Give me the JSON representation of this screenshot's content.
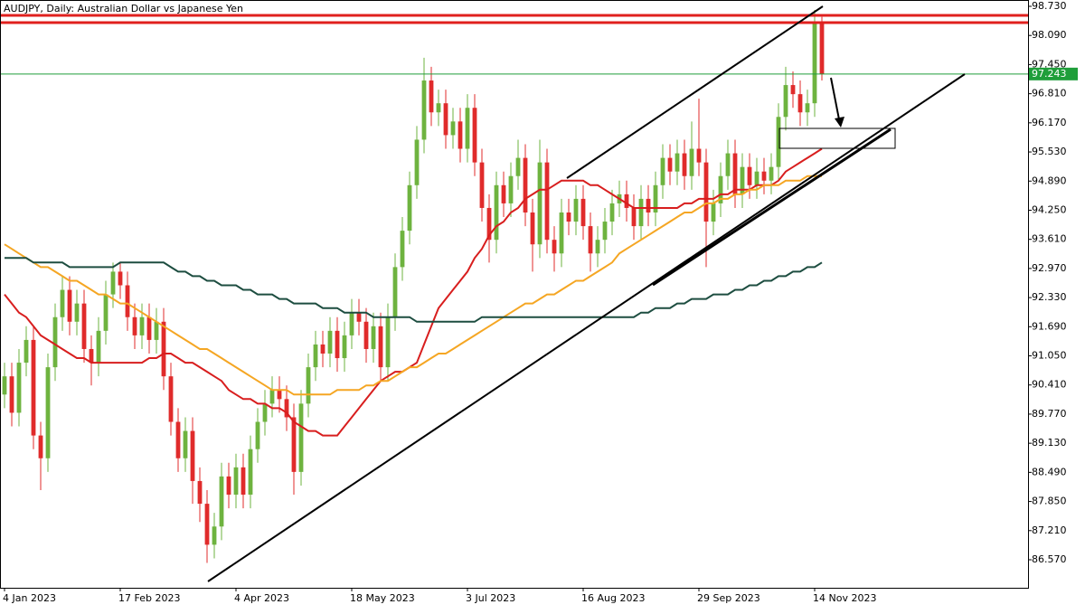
{
  "chart_data": {
    "type": "candlestick",
    "title": "AUDJPY, Daily:  Australian Dollar vs Japanese Yen",
    "categories": [
      "4 Jan 2023",
      null,
      null,
      null,
      null,
      null,
      null,
      null,
      null,
      null,
      null,
      null,
      null,
      null,
      null,
      null,
      "17 Feb 2023",
      null,
      null,
      null,
      null,
      null,
      null,
      null,
      null,
      null,
      null,
      null,
      null,
      null,
      null,
      null,
      "4 Apr 2023",
      null,
      null,
      null,
      null,
      null,
      null,
      null,
      null,
      null,
      null,
      null,
      null,
      null,
      null,
      null,
      "18 May 2023",
      null,
      null,
      null,
      null,
      null,
      null,
      null,
      null,
      null,
      null,
      null,
      null,
      null,
      null,
      null,
      "3 Jul 2023",
      null,
      null,
      null,
      null,
      null,
      null,
      null,
      null,
      null,
      null,
      null,
      null,
      null,
      null,
      null,
      "16 Aug 2023",
      null,
      null,
      null,
      null,
      null,
      null,
      null,
      null,
      null,
      null,
      null,
      null,
      null,
      null,
      null,
      "29 Sep 2023",
      null,
      null,
      null,
      null,
      null,
      null,
      null,
      null,
      null,
      null,
      null,
      null,
      null,
      null,
      null,
      "14 Nov 2023",
      null
    ],
    "open": [
      90.2,
      90.6,
      89.8,
      90.9,
      91.4,
      89.3,
      88.8,
      90.8,
      91.9,
      92.5,
      91.8,
      92.2,
      91.2,
      90.9,
      91.6,
      92.4,
      92.9,
      92.6,
      91.9,
      91.5,
      91.9,
      91.4,
      91.8,
      90.6,
      89.6,
      88.8,
      89.4,
      88.3,
      87.8,
      86.9,
      87.3,
      88.4,
      88.0,
      88.6,
      88.0,
      89.0,
      89.6,
      90.0,
      90.3,
      90.1,
      89.7,
      88.5,
      90.0,
      90.8,
      91.3,
      91.1,
      91.6,
      91.0,
      91.5,
      92.0,
      91.8,
      91.2,
      91.7,
      90.8,
      91.9,
      93.0,
      93.8,
      94.8,
      95.8,
      97.1,
      96.4,
      96.6,
      95.9,
      96.2,
      95.6,
      96.5,
      95.3,
      94.3,
      93.6,
      94.8,
      94.4,
      95.0,
      95.4,
      94.2,
      93.5,
      95.3,
      93.6,
      93.3,
      94.2,
      94.0,
      94.5,
      93.9,
      93.3,
      93.6,
      94.0,
      94.4,
      94.6,
      94.3,
      93.9,
      94.5,
      94.2,
      94.8,
      95.4,
      95.1,
      95.5,
      95.0,
      95.6,
      95.3,
      94.0,
      94.4,
      95.0,
      95.5,
      94.6,
      95.2,
      94.8,
      95.1,
      94.9,
      95.2,
      96.3,
      97.0,
      96.8,
      96.4,
      96.6,
      98.4
    ],
    "high": [
      90.9,
      90.9,
      91.2,
      91.7,
      91.7,
      89.6,
      91.1,
      92.2,
      92.8,
      92.8,
      92.5,
      92.5,
      91.5,
      91.9,
      92.7,
      93.1,
      93.1,
      92.9,
      92.2,
      92.2,
      92.2,
      92.1,
      92.1,
      90.9,
      89.9,
      89.7,
      89.7,
      88.6,
      88.1,
      87.6,
      88.7,
      88.7,
      88.9,
      88.9,
      89.3,
      89.9,
      90.3,
      90.6,
      90.6,
      90.4,
      90.0,
      90.3,
      91.1,
      91.6,
      91.6,
      91.9,
      91.9,
      91.8,
      92.3,
      92.3,
      92.1,
      92.0,
      92.0,
      92.2,
      93.3,
      94.1,
      95.1,
      96.1,
      97.6,
      97.4,
      96.9,
      96.9,
      96.5,
      96.5,
      96.8,
      96.8,
      95.6,
      94.6,
      95.1,
      95.1,
      95.3,
      95.8,
      95.7,
      94.5,
      95.8,
      95.6,
      93.9,
      94.5,
      94.5,
      94.8,
      94.8,
      94.2,
      93.9,
      94.3,
      94.7,
      94.9,
      94.9,
      94.6,
      94.8,
      94.8,
      95.1,
      95.7,
      95.7,
      95.8,
      95.8,
      96.2,
      96.7,
      95.6,
      94.7,
      95.3,
      95.8,
      95.8,
      95.5,
      95.5,
      95.4,
      95.4,
      95.5,
      96.6,
      97.4,
      97.3,
      97.1,
      96.9,
      98.65,
      98.5
    ],
    "low": [
      89.9,
      89.5,
      89.5,
      90.6,
      89.0,
      88.1,
      88.5,
      90.5,
      91.6,
      91.5,
      91.5,
      90.9,
      90.4,
      90.6,
      91.3,
      92.1,
      92.3,
      91.6,
      91.2,
      91.2,
      91.1,
      91.1,
      90.3,
      89.3,
      88.5,
      88.5,
      87.8,
      87.4,
      86.5,
      86.6,
      87.0,
      87.7,
      87.7,
      87.7,
      87.7,
      88.7,
      89.3,
      89.7,
      89.8,
      89.4,
      88.0,
      88.2,
      89.7,
      90.5,
      90.8,
      90.8,
      90.7,
      90.7,
      91.2,
      91.5,
      90.9,
      90.9,
      90.5,
      90.5,
      91.6,
      92.7,
      93.5,
      94.5,
      95.5,
      96.1,
      96.1,
      95.6,
      95.6,
      95.3,
      95.3,
      95.0,
      94.0,
      93.1,
      93.3,
      94.1,
      94.1,
      94.7,
      93.9,
      92.9,
      93.2,
      93.3,
      92.9,
      93.0,
      93.7,
      93.7,
      93.6,
      92.9,
      93.0,
      93.3,
      93.7,
      94.1,
      94.0,
      93.6,
      93.6,
      93.9,
      93.9,
      94.5,
      94.8,
      94.8,
      94.7,
      94.7,
      95.0,
      93.0,
      93.7,
      94.1,
      94.7,
      94.3,
      94.3,
      94.5,
      94.5,
      94.6,
      94.6,
      94.9,
      96.0,
      96.5,
      96.1,
      96.1,
      96.3,
      97.1
    ],
    "close": [
      90.6,
      89.8,
      90.9,
      91.4,
      89.3,
      88.8,
      90.8,
      91.9,
      92.5,
      91.8,
      92.2,
      91.2,
      90.9,
      91.6,
      92.4,
      92.9,
      92.6,
      91.9,
      91.5,
      91.9,
      91.4,
      91.8,
      90.6,
      89.6,
      88.8,
      89.4,
      88.3,
      87.8,
      86.9,
      87.3,
      88.4,
      88.0,
      88.6,
      88.0,
      89.0,
      89.6,
      90.0,
      90.3,
      90.1,
      89.7,
      88.5,
      90.0,
      90.8,
      91.3,
      91.1,
      91.6,
      91.0,
      91.5,
      92.0,
      91.8,
      91.2,
      91.7,
      90.8,
      91.9,
      93.0,
      93.8,
      94.8,
      95.8,
      97.1,
      96.4,
      96.6,
      95.9,
      96.2,
      95.6,
      96.5,
      95.3,
      94.3,
      93.6,
      94.8,
      94.4,
      95.0,
      95.4,
      94.2,
      93.5,
      95.3,
      93.6,
      93.3,
      94.2,
      94.0,
      94.5,
      93.9,
      93.3,
      93.6,
      94.0,
      94.4,
      94.6,
      94.3,
      93.9,
      94.5,
      94.2,
      94.8,
      95.4,
      95.1,
      95.5,
      95.0,
      95.6,
      95.3,
      94.0,
      94.4,
      95.0,
      95.5,
      94.6,
      95.2,
      94.8,
      95.1,
      94.9,
      95.2,
      96.3,
      97.0,
      96.8,
      96.4,
      96.6,
      98.4,
      97.243
    ],
    "up_color": "#6eb33f",
    "down_color": "#e02b2b",
    "last_price_color": "#1f9e3a",
    "series": [
      {
        "color": "#d81e1e",
        "values": [
          92.4,
          92.2,
          92.0,
          91.9,
          91.7,
          91.5,
          91.4,
          91.3,
          91.2,
          91.1,
          91.0,
          91.0,
          90.9,
          90.9,
          90.9,
          90.9,
          90.9,
          90.9,
          90.9,
          90.9,
          91.0,
          91.0,
          91.1,
          91.1,
          91.0,
          90.9,
          90.9,
          90.8,
          90.7,
          90.6,
          90.5,
          90.3,
          90.2,
          90.1,
          90.1,
          90.0,
          90.0,
          89.9,
          89.9,
          89.8,
          89.6,
          89.5,
          89.4,
          89.4,
          89.3,
          89.3,
          89.3,
          89.5,
          89.7,
          89.9,
          90.1,
          90.3,
          90.5,
          90.6,
          90.7,
          90.7,
          90.8,
          90.9,
          91.3,
          91.7,
          92.1,
          92.3,
          92.5,
          92.7,
          92.9,
          93.2,
          93.4,
          93.7,
          93.9,
          94.0,
          94.2,
          94.3,
          94.5,
          94.6,
          94.7,
          94.7,
          94.8,
          94.9,
          94.9,
          94.9,
          94.9,
          94.8,
          94.8,
          94.7,
          94.6,
          94.5,
          94.4,
          94.3,
          94.3,
          94.3,
          94.3,
          94.3,
          94.3,
          94.3,
          94.4,
          94.4,
          94.5,
          94.5,
          94.5,
          94.6,
          94.6,
          94.7,
          94.7,
          94.7,
          94.8,
          94.8,
          94.8,
          94.9,
          95.1,
          95.2,
          95.3,
          95.4,
          95.5,
          95.6
        ]
      },
      {
        "color": "#f5a623",
        "values": [
          93.5,
          93.4,
          93.3,
          93.2,
          93.1,
          93.0,
          93.0,
          92.9,
          92.8,
          92.7,
          92.7,
          92.6,
          92.5,
          92.4,
          92.4,
          92.3,
          92.2,
          92.2,
          92.1,
          92.0,
          91.9,
          91.8,
          91.7,
          91.6,
          91.5,
          91.4,
          91.3,
          91.2,
          91.2,
          91.1,
          91.0,
          90.9,
          90.8,
          90.7,
          90.6,
          90.5,
          90.4,
          90.3,
          90.3,
          90.3,
          90.2,
          90.2,
          90.2,
          90.2,
          90.2,
          90.2,
          90.3,
          90.3,
          90.3,
          90.3,
          90.4,
          90.4,
          90.5,
          90.5,
          90.6,
          90.7,
          90.8,
          90.8,
          90.9,
          91.0,
          91.1,
          91.1,
          91.2,
          91.3,
          91.4,
          91.5,
          91.6,
          91.7,
          91.8,
          91.9,
          92.0,
          92.1,
          92.2,
          92.2,
          92.3,
          92.4,
          92.4,
          92.5,
          92.6,
          92.7,
          92.7,
          92.8,
          92.9,
          93.0,
          93.1,
          93.3,
          93.4,
          93.5,
          93.6,
          93.7,
          93.8,
          93.9,
          94.0,
          94.1,
          94.2,
          94.2,
          94.3,
          94.4,
          94.4,
          94.5,
          94.5,
          94.6,
          94.6,
          94.7,
          94.7,
          94.8,
          94.8,
          94.8,
          94.9,
          94.9,
          94.9,
          95.0,
          95.0,
          95.0
        ]
      },
      {
        "color": "#1d4d40",
        "values": [
          93.2,
          93.2,
          93.2,
          93.2,
          93.1,
          93.1,
          93.1,
          93.1,
          93.1,
          93.0,
          93.0,
          93.0,
          93.0,
          93.0,
          93.0,
          93.0,
          93.1,
          93.1,
          93.1,
          93.1,
          93.1,
          93.1,
          93.1,
          93.0,
          92.9,
          92.9,
          92.8,
          92.8,
          92.7,
          92.7,
          92.6,
          92.6,
          92.6,
          92.5,
          92.5,
          92.4,
          92.4,
          92.4,
          92.3,
          92.3,
          92.2,
          92.2,
          92.2,
          92.2,
          92.1,
          92.1,
          92.1,
          92.0,
          92.0,
          92.0,
          92.0,
          91.9,
          91.9,
          91.9,
          91.9,
          91.9,
          91.9,
          91.8,
          91.8,
          91.8,
          91.8,
          91.8,
          91.8,
          91.8,
          91.8,
          91.8,
          91.9,
          91.9,
          91.9,
          91.9,
          91.9,
          91.9,
          91.9,
          91.9,
          91.9,
          91.9,
          91.9,
          91.9,
          91.9,
          91.9,
          91.9,
          91.9,
          91.9,
          91.9,
          91.9,
          91.9,
          91.9,
          91.9,
          92.0,
          92.0,
          92.1,
          92.1,
          92.1,
          92.2,
          92.2,
          92.3,
          92.3,
          92.3,
          92.4,
          92.4,
          92.4,
          92.5,
          92.5,
          92.6,
          92.6,
          92.7,
          92.7,
          92.8,
          92.8,
          92.9,
          92.9,
          93.0,
          93.0,
          93.1
        ]
      }
    ],
    "ylim": [
      85.954,
      98.869
    ],
    "yticks": [
      {
        "value": 98.73,
        "label": "98.730"
      },
      {
        "value": 98.09,
        "label": "98.090"
      },
      {
        "value": 97.45,
        "label": "97.450"
      },
      {
        "value": 96.81,
        "label": "96.810"
      },
      {
        "value": 96.17,
        "label": "96.170"
      },
      {
        "value": 95.53,
        "label": "95.530"
      },
      {
        "value": 94.89,
        "label": "94.890"
      },
      {
        "value": 94.25,
        "label": "94.250"
      },
      {
        "value": 93.61,
        "label": "93.610"
      },
      {
        "value": 92.97,
        "label": "92.970"
      },
      {
        "value": 92.33,
        "label": "92.330"
      },
      {
        "value": 91.69,
        "label": "91.690"
      },
      {
        "value": 91.05,
        "label": "91.050"
      },
      {
        "value": 90.41,
        "label": "90.410"
      },
      {
        "value": 89.77,
        "label": "89.770"
      },
      {
        "value": 89.13,
        "label": "89.130"
      },
      {
        "value": 88.49,
        "label": "88.490"
      },
      {
        "value": 87.85,
        "label": "87.850"
      },
      {
        "value": 87.21,
        "label": "87.210"
      },
      {
        "value": 86.57,
        "label": "86.570"
      }
    ]
  }
}
